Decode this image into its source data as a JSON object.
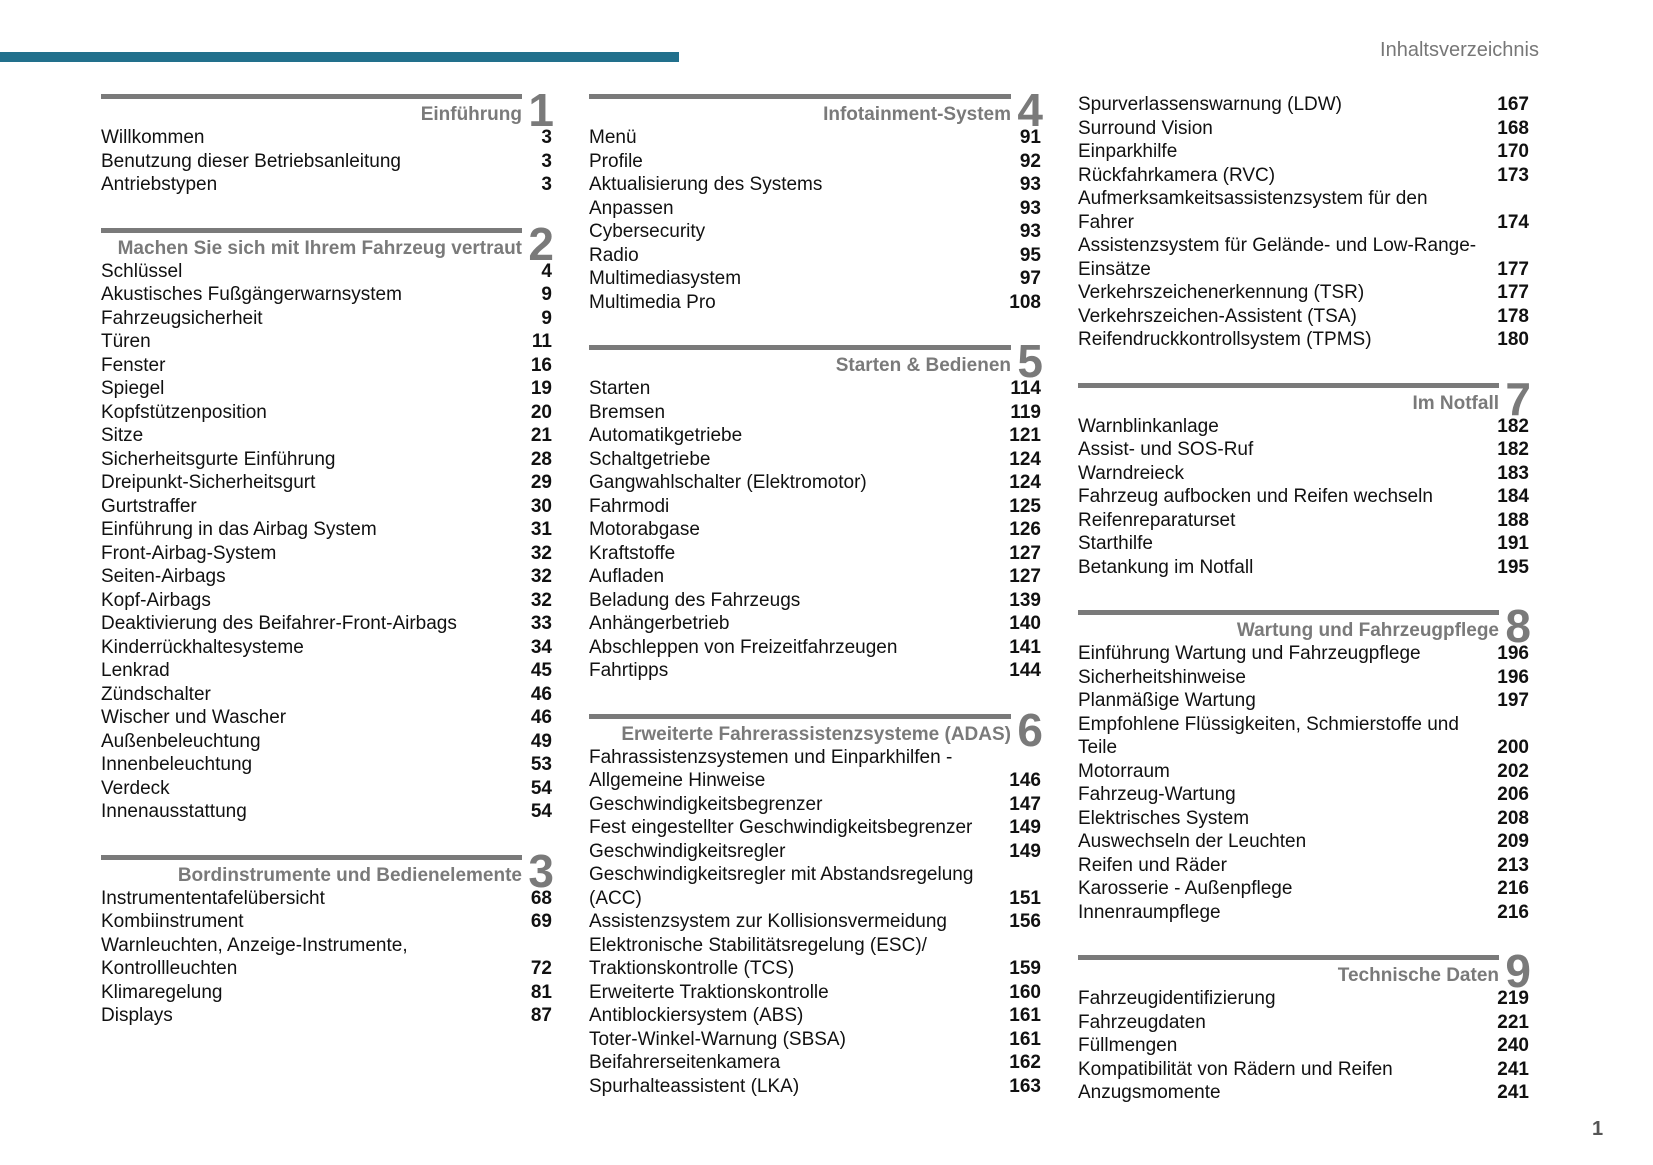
{
  "header": {
    "title": "Inhaltsverzeichnis"
  },
  "page_number": "1",
  "columns": [
    {
      "sections": [
        {
          "number": 1,
          "title": "Einführung",
          "entries": [
            {
              "text": "Willkommen",
              "page": 3
            },
            {
              "text": "Benutzung dieser Betriebsanleitung",
              "page": 3
            },
            {
              "text": "Antriebstypen",
              "page": 3
            }
          ]
        },
        {
          "number": 2,
          "title": "Machen Sie sich mit Ihrem Fahrzeug vertraut",
          "entries": [
            {
              "text": "Schlüssel",
              "page": 4
            },
            {
              "text": "Akustisches Fußgängerwarnsystem",
              "page": 9
            },
            {
              "text": "Fahrzeugsicherheit",
              "page": 9
            },
            {
              "text": "Türen",
              "page": 11
            },
            {
              "text": "Fenster",
              "page": 16
            },
            {
              "text": "Spiegel",
              "page": 19
            },
            {
              "text": "Kopfstützenposition",
              "page": 20
            },
            {
              "text": "Sitze",
              "page": 21
            },
            {
              "text": "Sicherheitsgurte Einführung",
              "page": 28
            },
            {
              "text": "Dreipunkt-Sicherheitsgurt",
              "page": 29
            },
            {
              "text": "Gurtstraffer",
              "page": 30
            },
            {
              "text": "Einführung in das Airbag System",
              "page": 31
            },
            {
              "text": "Front-Airbag-System",
              "page": 32
            },
            {
              "text": "Seiten-Airbags",
              "page": 32
            },
            {
              "text": "Kopf-Airbags",
              "page": 32
            },
            {
              "text": "Deaktivierung des Beifahrer-Front-Airbags",
              "page": 33
            },
            {
              "text": "Kinderrückhaltesysteme",
              "page": 34
            },
            {
              "text": "Lenkrad",
              "page": 45
            },
            {
              "text": "Zündschalter",
              "page": 46
            },
            {
              "text": "Wischer und Wascher",
              "page": 46
            },
            {
              "text": "Außenbeleuchtung",
              "page": 49
            },
            {
              "text": "Innenbeleuchtung",
              "page": 53
            },
            {
              "text": "Verdeck",
              "page": 54
            },
            {
              "text": "Innenausstattung",
              "page": 54
            }
          ]
        },
        {
          "number": 3,
          "title": "Bordinstrumente und Bedienelemente",
          "entries": [
            {
              "text": "Instrumententafelübersicht",
              "page": 68
            },
            {
              "text": "Kombiinstrument",
              "page": 69
            },
            {
              "text": "Warnleuchten, Anzeige-Instrumente, Kontrollleuchten",
              "page": 72
            },
            {
              "text": "Klimaregelung",
              "page": 81
            },
            {
              "text": "Displays",
              "page": 87
            }
          ]
        }
      ]
    },
    {
      "sections": [
        {
          "number": 4,
          "title": "Infotainment-System",
          "entries": [
            {
              "text": "Menü",
              "page": 91
            },
            {
              "text": "Profile",
              "page": 92
            },
            {
              "text": "Aktualisierung des Systems",
              "page": 93
            },
            {
              "text": "Anpassen",
              "page": 93
            },
            {
              "text": "Cybersecurity",
              "page": 93
            },
            {
              "text": "Radio",
              "page": 95
            },
            {
              "text": "Multimediasystem",
              "page": 97
            },
            {
              "text": "Multimedia Pro",
              "page": 108
            }
          ]
        },
        {
          "number": 5,
          "title": "Starten & Bedienen",
          "entries": [
            {
              "text": "Starten",
              "page": 114
            },
            {
              "text": "Bremsen",
              "page": 119
            },
            {
              "text": "Automatikgetriebe",
              "page": 121
            },
            {
              "text": "Schaltgetriebe",
              "page": 124
            },
            {
              "text": "Gangwahlschalter (Elektromotor)",
              "page": 124
            },
            {
              "text": "Fahrmodi",
              "page": 125
            },
            {
              "text": "Motorabgase",
              "page": 126
            },
            {
              "text": "Kraftstoffe",
              "page": 127
            },
            {
              "text": "Aufladen",
              "page": 127
            },
            {
              "text": "Beladung des Fahrzeugs",
              "page": 139
            },
            {
              "text": "Anhängerbetrieb",
              "page": 140
            },
            {
              "text": "Abschleppen von Freizeitfahrzeugen",
              "page": 141
            },
            {
              "text": "Fahrtipps",
              "page": 144
            }
          ]
        },
        {
          "number": 6,
          "title": "Erweiterte Fahrerassistenzsysteme (ADAS)",
          "entries": [
            {
              "text": "Fahrassistenzsystemen und Einparkhilfen - Allgemeine Hinweise",
              "page": 146
            },
            {
              "text": "Geschwindigkeitsbegrenzer",
              "page": 147
            },
            {
              "text": "Fest eingestellter Geschwindigkeitsbegrenzer",
              "page": 149
            },
            {
              "text": "Geschwindigkeitsregler",
              "page": 149
            },
            {
              "text": "Geschwindigkeitsregler mit Abstandsregelung (ACC)",
              "page": 151
            },
            {
              "text": "Assistenzsystem zur Kollisionsvermeidung",
              "page": 156
            },
            {
              "text": "Elektronische Stabilitätsregelung (ESC)/ Traktionskontrolle (TCS)",
              "page": 159
            },
            {
              "text": "Erweiterte Traktionskontrolle",
              "page": 160
            },
            {
              "text": "Antiblockiersystem (ABS)",
              "page": 161
            },
            {
              "text": "Toter-Winkel-Warnung (SBSA)",
              "page": 161
            },
            {
              "text": "Beifahrerseitenkamera",
              "page": 162
            },
            {
              "text": "Spurhalteassistent (LKA)",
              "page": 163
            }
          ]
        }
      ]
    },
    {
      "sections": [
        {
          "entries": [
            {
              "text": "Spurverlassenswarnung (LDW)",
              "page": 167
            },
            {
              "text": "Surround Vision",
              "page": 168
            },
            {
              "text": "Einparkhilfe",
              "page": 170
            },
            {
              "text": "Rückfahrkamera (RVC)",
              "page": 173
            },
            {
              "text": "Aufmerksamkeitsassistenzsystem für den Fahrer",
              "page": 174
            },
            {
              "text": "Assistenzsystem für Gelände- und Low-Range-Einsätze",
              "page": 177
            },
            {
              "text": "Verkehrszeichenerkennung (TSR)",
              "page": 177
            },
            {
              "text": "Verkehrszeichen-Assistent (TSA)",
              "page": 178
            },
            {
              "text": "Reifendruckkontrollsystem (TPMS)",
              "page": 180
            }
          ]
        },
        {
          "number": 7,
          "title": "Im Notfall",
          "entries": [
            {
              "text": "Warnblinkanlage",
              "page": 182
            },
            {
              "text": "Assist- und SOS-Ruf",
              "page": 182
            },
            {
              "text": "Warndreieck",
              "page": 183
            },
            {
              "text": "Fahrzeug aufbocken und Reifen wechseln",
              "page": 184
            },
            {
              "text": "Reifenreparaturset",
              "page": 188
            },
            {
              "text": "Starthilfe",
              "page": 191
            },
            {
              "text": "Betankung im Notfall",
              "page": 195
            }
          ]
        },
        {
          "number": 8,
          "title": "Wartung und Fahrzeugpflege",
          "entries": [
            {
              "text": "Einführung Wartung und Fahrzeugpflege",
              "page": 196
            },
            {
              "text": "Sicherheitshinweise",
              "page": 196
            },
            {
              "text": "Planmäßige Wartung",
              "page": 197
            },
            {
              "text": "Empfohlene Flüssigkeiten, Schmierstoffe und Teile",
              "page": 200
            },
            {
              "text": "Motorraum",
              "page": 202
            },
            {
              "text": "Fahrzeug-Wartung",
              "page": 206
            },
            {
              "text": "Elektrisches System",
              "page": 208
            },
            {
              "text": "Auswechseln der Leuchten",
              "page": 209
            },
            {
              "text": "Reifen und Räder",
              "page": 213
            },
            {
              "text": "Karosserie - Außenpflege",
              "page": 216
            },
            {
              "text": "Innenraumpflege",
              "page": 216
            }
          ]
        },
        {
          "number": 9,
          "title": "Technische Daten",
          "entries": [
            {
              "text": "Fahrzeugidentifizierung",
              "page": 219
            },
            {
              "text": "Fahrzeugdaten",
              "page": 221
            },
            {
              "text": "Füllmengen",
              "page": 240
            },
            {
              "text": "Kompatibilität von Rädern und Reifen",
              "page": 241
            },
            {
              "text": "Anzugsmomente",
              "page": 241
            }
          ]
        }
      ]
    }
  ]
}
